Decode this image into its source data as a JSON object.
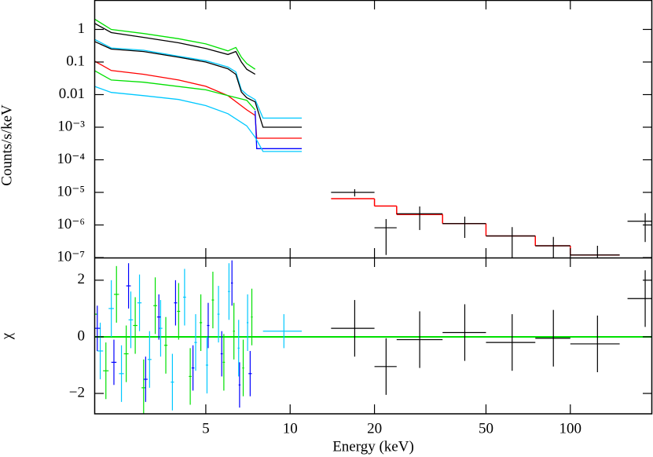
{
  "chart_data": [
    {
      "type": "line",
      "ylabel": "Counts/s/keV",
      "xscale": "log",
      "yscale": "log",
      "xlim": [
        2,
        196
      ],
      "ylim": [
        1e-07,
        8
      ],
      "yticks": [
        1,
        0.1,
        0.01,
        {
          "value": 0.001,
          "label": "10⁻³"
        },
        {
          "value": 0.0001,
          "label": "10⁻⁴"
        },
        {
          "value": 1e-05,
          "label": "10⁻⁵"
        },
        {
          "value": 1e-06,
          "label": "10⁻⁶"
        },
        {
          "value": 1e-07,
          "label": "10⁻⁷"
        }
      ],
      "series": [
        {
          "color": "#00e000",
          "x": [
            2.0,
            2.3,
            3,
            4,
            5,
            6,
            6.4,
            6.7,
            7,
            7.5
          ],
          "values": [
            2.1,
            1.0,
            0.75,
            0.52,
            0.36,
            0.22,
            0.28,
            0.14,
            0.09,
            0.06
          ]
        },
        {
          "color": "#000000",
          "x": [
            2.0,
            2.3,
            3,
            4,
            5,
            6,
            6.4,
            6.7,
            7,
            7.5
          ],
          "values": [
            1.56,
            0.8,
            0.57,
            0.39,
            0.26,
            0.17,
            0.21,
            0.1,
            0.06,
            0.042
          ]
        },
        {
          "color": "#00c8ff",
          "x": [
            2.0,
            2.3,
            3,
            4,
            5,
            6,
            6.4,
            6.7,
            7,
            7.5,
            8,
            11
          ],
          "values": [
            0.5,
            0.27,
            0.23,
            0.15,
            0.11,
            0.07,
            0.05,
            0.014,
            0.01,
            0.007,
            0.0019,
            0.0019
          ]
        },
        {
          "color": "#000000",
          "x": [
            2.0,
            2.3,
            3,
            4,
            5,
            6,
            6.4,
            6.7,
            7,
            7.5,
            8,
            11
          ],
          "values": [
            0.43,
            0.25,
            0.21,
            0.14,
            0.1,
            0.062,
            0.042,
            0.012,
            0.008,
            0.006,
            0.001,
            0.001
          ]
        },
        {
          "color": "#ff0000",
          "x": [
            2.0,
            2.3,
            3,
            4,
            5,
            6,
            7,
            7.5,
            7.6,
            11
          ],
          "values": [
            0.108,
            0.055,
            0.042,
            0.028,
            0.018,
            0.0093,
            0.0034,
            0.0023,
            0.00046,
            0.00046
          ]
        },
        {
          "color": "#00e000",
          "x": [
            2.0,
            2.3,
            3,
            5,
            6,
            7,
            7.5
          ],
          "values": [
            0.055,
            0.028,
            0.024,
            0.014,
            0.0093,
            0.0067,
            0.0034
          ]
        },
        {
          "color": "#0000ff",
          "x": [
            7.5,
            7.6,
            11
          ],
          "values": [
            0.0032,
            0.00022,
            0.00022
          ]
        },
        {
          "color": "#00c8ff",
          "x": [
            2.0,
            2.3,
            3,
            4,
            5,
            6,
            7,
            7.5,
            8,
            11
          ],
          "values": [
            0.018,
            0.0117,
            0.0093,
            0.0071,
            0.0046,
            0.0026,
            0.0011,
            0.00049,
            0.00018,
            0.00018
          ]
        }
      ],
      "steps": [
        {
          "color": "#ff0000",
          "bins": [
            14,
            20,
            24,
            35,
            50,
            75,
            100,
            150
          ],
          "values": [
            6.4e-06,
            3.8e-06,
            2.1e-06,
            1.1e-06,
            4.6e-07,
            2.3e-07,
            1.2e-07
          ]
        }
      ],
      "points": [
        {
          "color": "#000000",
          "x": [
            17,
            22,
            29,
            42,
            62,
            87,
            125,
            185
          ],
          "xlo": [
            14,
            20,
            24,
            35,
            50,
            75,
            100,
            160
          ],
          "xhi": [
            20,
            24,
            35,
            50,
            75,
            100,
            150,
            196
          ],
          "values": [
            1e-05,
            8.2e-07,
            2.2e-06,
            1.1e-06,
            4.6e-07,
            2.3e-07,
            1.2e-07,
            1.3e-06
          ],
          "yerr": [
            2.5e-06,
            7e-07,
            1.5e-06,
            7e-07,
            4e-07,
            2e-07,
            1.1e-07,
            1e-06
          ]
        }
      ]
    },
    {
      "type": "line",
      "ylabel": "χ",
      "xlabel": "Energy (keV)",
      "xscale": "log",
      "yscale": "linear",
      "xlim": [
        2,
        196
      ],
      "ylim": [
        -2.72,
        2.8
      ],
      "xticks": [
        5,
        10,
        20,
        50,
        100
      ],
      "yticks": [
        {
          "value": -2,
          "label": "−2"
        },
        0,
        2
      ],
      "zero_line": {
        "value": 0,
        "color": "#00e000"
      },
      "points": [
        {
          "color": "#00e000",
          "x": [
            2.0,
            2.2,
            2.4,
            2.6,
            2.8,
            3.0,
            3.3,
            3.6,
            4.0,
            4.4,
            4.8,
            5.3,
            5.8,
            6.3,
            6.8,
            7.3
          ],
          "xlo": [
            1.95,
            2.15,
            2.35,
            2.55,
            2.75,
            2.95,
            3.25,
            3.55,
            3.95,
            4.35,
            4.75,
            5.25,
            5.75,
            6.25,
            6.75,
            7.25
          ],
          "xhi": [
            2.05,
            2.25,
            2.45,
            2.65,
            2.85,
            3.05,
            3.35,
            3.65,
            4.05,
            4.45,
            4.85,
            5.35,
            5.85,
            6.35,
            6.85,
            7.35
          ],
          "values": [
            0.8,
            -1.2,
            1.5,
            -0.6,
            0.4,
            -1.8,
            1.1,
            -0.3,
            0.9,
            -1.4,
            0.5,
            1.3,
            -0.9,
            0.2,
            -1.1,
            0.7
          ],
          "yerr": [
            1,
            1,
            1,
            1,
            1,
            1,
            1,
            1,
            1,
            1,
            1,
            1,
            1,
            1,
            1,
            1
          ]
        },
        {
          "color": "#00c8ff",
          "x": [
            2.1,
            2.3,
            2.5,
            2.7,
            2.9,
            3.15,
            3.45,
            3.8,
            4.2,
            4.6,
            5.05,
            5.55,
            6.05,
            6.55,
            7.05,
            9.5
          ],
          "xlo": [
            2.05,
            2.25,
            2.45,
            2.65,
            2.85,
            3.1,
            3.4,
            3.75,
            4.15,
            4.55,
            5.0,
            5.5,
            6.0,
            6.5,
            7.0,
            8.0
          ],
          "xhi": [
            2.15,
            2.35,
            2.55,
            2.75,
            2.95,
            3.2,
            3.5,
            3.85,
            4.25,
            4.65,
            5.1,
            5.6,
            6.1,
            6.6,
            7.1,
            11
          ],
          "values": [
            -0.5,
            1.0,
            -1.3,
            0.6,
            1.2,
            -0.8,
            0.3,
            -1.6,
            1.4,
            -0.2,
            -1.0,
            0.8,
            1.6,
            -0.4,
            0.5,
            0.2
          ],
          "yerr": [
            1,
            1,
            1,
            1,
            1,
            1,
            1,
            1,
            1,
            1,
            1,
            1,
            1,
            1,
            1,
            0.6
          ]
        },
        {
          "color": "#0000ff",
          "x": [
            2.05,
            2.35,
            2.65,
            3.05,
            3.4,
            3.9,
            4.5,
            5.1,
            5.7,
            6.2,
            6.6,
            7.2
          ],
          "xlo": [
            2.0,
            2.3,
            2.6,
            3.0,
            3.35,
            3.85,
            4.45,
            5.05,
            5.65,
            6.15,
            6.55,
            7.1
          ],
          "xhi": [
            2.1,
            2.4,
            2.7,
            3.1,
            3.45,
            3.95,
            4.55,
            5.15,
            5.75,
            6.25,
            6.65,
            7.3
          ],
          "values": [
            0.3,
            -0.9,
            1.8,
            -1.5,
            0.7,
            1.2,
            -1.1,
            0.4,
            -0.6,
            1.9,
            -1.7,
            -1.3
          ],
          "yerr": [
            0.8,
            0.8,
            0.8,
            0.8,
            0.8,
            0.8,
            0.8,
            0.8,
            0.8,
            0.8,
            0.8,
            0.8
          ]
        },
        {
          "color": "#000000",
          "x": [
            17,
            22,
            29,
            42,
            62,
            87,
            125,
            185
          ],
          "xlo": [
            14,
            20,
            24,
            35,
            50,
            75,
            100,
            160
          ],
          "xhi": [
            20,
            24,
            35,
            50,
            75,
            100,
            150,
            196
          ],
          "values": [
            0.3,
            -1.05,
            -0.1,
            0.15,
            -0.2,
            -0.05,
            -0.25,
            1.35
          ],
          "yerr": [
            1,
            1,
            1,
            1,
            1,
            1,
            1,
            1
          ]
        }
      ]
    }
  ]
}
